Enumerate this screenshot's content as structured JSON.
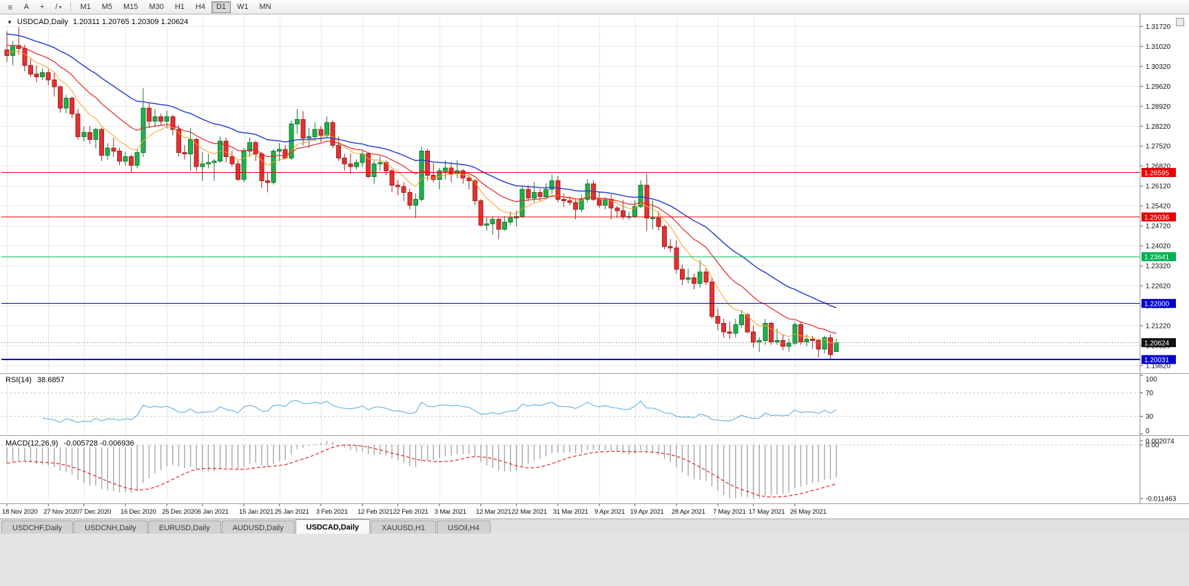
{
  "toolbar": {
    "icons": [
      {
        "name": "toolbar-grip-icon",
        "glyph": "≡"
      },
      {
        "name": "text-annotation-icon",
        "glyph": "A"
      },
      {
        "name": "crosshair-icon",
        "glyph": "+"
      },
      {
        "name": "draw-tools-icon",
        "glyph": "/"
      },
      {
        "name": "dropdown-caret-icon",
        "glyph": "▾"
      }
    ],
    "timeframes": [
      "M1",
      "M5",
      "M15",
      "M30",
      "H1",
      "H4",
      "D1",
      "W1",
      "MN"
    ],
    "active_timeframe": "D1"
  },
  "chart": {
    "symbol_period": "USDCAD,Daily",
    "ohlc_text": "1.20311 1.20765 1.20309 1.20624",
    "collapse_icon": "▼"
  },
  "tabs": {
    "items": [
      "USDCHF,Daily",
      "USDCNH,Daily",
      "EURUSD,Daily",
      "AUDUSD,Daily",
      "USDCAD,Daily",
      "XAUUSD,H1",
      "USOil,H4"
    ],
    "active_index": 4
  },
  "chart_data": {
    "type": "candlestick",
    "symbol": "USDCAD",
    "period": "Daily",
    "last_ohlc": {
      "open": "1.20311",
      "high": "1.20765",
      "low": "1.20309",
      "close": "1.20624"
    },
    "price_axis": {
      "range": [
        1.196,
        1.3202
      ],
      "ticks": [
        "1.31720",
        "1.31020",
        "1.30320",
        "1.29620",
        "1.28920",
        "1.28220",
        "1.27520",
        "1.26820",
        "1.26120",
        "1.25420",
        "1.24720",
        "1.24020",
        "1.23320",
        "1.22620",
        "1.21920",
        "1.21220",
        "1.20520",
        "1.19820"
      ]
    },
    "x_axis": {
      "labels": [
        {
          "i": 0,
          "t": "18 Nov 2020"
        },
        {
          "i": 7,
          "t": "27 Nov 2020"
        },
        {
          "i": 13,
          "t": "7 Dec 2020"
        },
        {
          "i": 20,
          "t": "16 Dec 2020"
        },
        {
          "i": 27,
          "t": "25 Dec 2020"
        },
        {
          "i": 33,
          "t": "6 Jan 2021"
        },
        {
          "i": 40,
          "t": "15 Jan 2021"
        },
        {
          "i": 46,
          "t": "25 Jan 2021"
        },
        {
          "i": 53,
          "t": "3 Feb 2021"
        },
        {
          "i": 60,
          "t": "12 Feb 2021"
        },
        {
          "i": 66,
          "t": "22 Feb 2021"
        },
        {
          "i": 73,
          "t": "3 Mar 2021"
        },
        {
          "i": 80,
          "t": "12 Mar 2021"
        },
        {
          "i": 86,
          "t": "22 Mar 2021"
        },
        {
          "i": 93,
          "t": "31 Mar 2021"
        },
        {
          "i": 100,
          "t": "9 Apr 2021"
        },
        {
          "i": 106,
          "t": "19 Apr 2021"
        },
        {
          "i": 113,
          "t": "28 Apr 2021"
        },
        {
          "i": 120,
          "t": "7 May 2021"
        },
        {
          "i": 126,
          "t": "17 May 2021"
        },
        {
          "i": 133,
          "t": "26 May 2021"
        }
      ]
    },
    "candles": [
      [
        1.309,
        1.3155,
        1.3048,
        1.307
      ],
      [
        1.307,
        1.3122,
        1.3036,
        1.3105
      ],
      [
        1.3105,
        1.317,
        1.3072,
        1.3095
      ],
      [
        1.3095,
        1.3108,
        1.3015,
        1.3035
      ],
      [
        1.3035,
        1.3062,
        1.2995,
        1.3005
      ],
      [
        1.3005,
        1.3036,
        1.2976,
        1.2995
      ],
      [
        1.2995,
        1.3025,
        1.2984,
        1.301
      ],
      [
        1.301,
        1.3022,
        1.2965,
        1.2985
      ],
      [
        1.2985,
        1.301,
        1.2926,
        1.296
      ],
      [
        1.296,
        1.2966,
        1.287,
        1.2885
      ],
      [
        1.2885,
        1.2932,
        1.2868,
        1.292
      ],
      [
        1.292,
        1.2926,
        1.285,
        1.2865
      ],
      [
        1.2865,
        1.2882,
        1.2775,
        1.2785
      ],
      [
        1.2785,
        1.2821,
        1.2768,
        1.28
      ],
      [
        1.28,
        1.2822,
        1.276,
        1.2775
      ],
      [
        1.2775,
        1.2816,
        1.2744,
        1.281
      ],
      [
        1.281,
        1.2816,
        1.27,
        1.272
      ],
      [
        1.272,
        1.2762,
        1.2704,
        1.2745
      ],
      [
        1.2745,
        1.2782,
        1.2714,
        1.2735
      ],
      [
        1.2735,
        1.2746,
        1.2685,
        1.27
      ],
      [
        1.27,
        1.2732,
        1.2684,
        1.2715
      ],
      [
        1.2715,
        1.2722,
        1.266,
        1.2685
      ],
      [
        1.2685,
        1.2742,
        1.2674,
        1.273
      ],
      [
        1.273,
        1.2955,
        1.2714,
        1.2885
      ],
      [
        1.2885,
        1.2902,
        1.2815,
        1.284
      ],
      [
        1.284,
        1.2882,
        1.2818,
        1.2855
      ],
      [
        1.2855,
        1.2866,
        1.2824,
        1.284
      ],
      [
        1.284,
        1.2876,
        1.2814,
        1.2855
      ],
      [
        1.2855,
        1.2862,
        1.279,
        1.281
      ],
      [
        1.281,
        1.2826,
        1.2715,
        1.273
      ],
      [
        1.273,
        1.2756,
        1.2705,
        1.2725
      ],
      [
        1.2725,
        1.2816,
        1.2665,
        1.2775
      ],
      [
        1.2775,
        1.2782,
        1.2665,
        1.268
      ],
      [
        1.268,
        1.2732,
        1.263,
        1.269
      ],
      [
        1.269,
        1.2726,
        1.2674,
        1.2695
      ],
      [
        1.2695,
        1.2706,
        1.263,
        1.27
      ],
      [
        1.27,
        1.2786,
        1.2694,
        1.277
      ],
      [
        1.277,
        1.2782,
        1.2695,
        1.2715
      ],
      [
        1.2715,
        1.2736,
        1.268,
        1.269
      ],
      [
        1.269,
        1.2702,
        1.263,
        1.2635
      ],
      [
        1.2635,
        1.2746,
        1.2624,
        1.2735
      ],
      [
        1.2735,
        1.2782,
        1.2714,
        1.2765
      ],
      [
        1.2765,
        1.2772,
        1.27,
        1.2725
      ],
      [
        1.2725,
        1.2732,
        1.2605,
        1.263
      ],
      [
        1.263,
        1.2662,
        1.259,
        1.2625
      ],
      [
        1.2625,
        1.2742,
        1.2618,
        1.2735
      ],
      [
        1.2735,
        1.2762,
        1.27,
        1.274
      ],
      [
        1.274,
        1.2756,
        1.2705,
        1.271
      ],
      [
        1.271,
        1.2842,
        1.2704,
        1.283
      ],
      [
        1.283,
        1.2882,
        1.2795,
        1.2845
      ],
      [
        1.2845,
        1.2875,
        1.2755,
        1.278
      ],
      [
        1.278,
        1.2816,
        1.2745,
        1.2785
      ],
      [
        1.2785,
        1.2836,
        1.277,
        1.281
      ],
      [
        1.281,
        1.2822,
        1.2765,
        1.279
      ],
      [
        1.279,
        1.2856,
        1.278,
        1.2835
      ],
      [
        1.2835,
        1.2842,
        1.2745,
        1.2755
      ],
      [
        1.2755,
        1.2786,
        1.27,
        1.271
      ],
      [
        1.271,
        1.2726,
        1.2665,
        1.269
      ],
      [
        1.269,
        1.2726,
        1.2655,
        1.268
      ],
      [
        1.268,
        1.2706,
        1.267,
        1.2695
      ],
      [
        1.2695,
        1.2736,
        1.268,
        1.2725
      ],
      [
        1.2725,
        1.2732,
        1.264,
        1.2645
      ],
      [
        1.2645,
        1.2702,
        1.262,
        1.269
      ],
      [
        1.269,
        1.2716,
        1.2665,
        1.2695
      ],
      [
        1.2695,
        1.2702,
        1.265,
        1.2665
      ],
      [
        1.2665,
        1.2672,
        1.259,
        1.2615
      ],
      [
        1.2615,
        1.2632,
        1.258,
        1.261
      ],
      [
        1.261,
        1.2626,
        1.256,
        1.259
      ],
      [
        1.259,
        1.2602,
        1.253,
        1.2545
      ],
      [
        1.2545,
        1.2586,
        1.25,
        1.2565
      ],
      [
        1.2565,
        1.275,
        1.2558,
        1.2735
      ],
      [
        1.2735,
        1.2742,
        1.263,
        1.265
      ],
      [
        1.265,
        1.2692,
        1.2625,
        1.2635
      ],
      [
        1.2635,
        1.2676,
        1.26,
        1.2665
      ],
      [
        1.2665,
        1.2702,
        1.2635,
        1.2675
      ],
      [
        1.2675,
        1.2696,
        1.2625,
        1.2655
      ],
      [
        1.2655,
        1.2702,
        1.264,
        1.2665
      ],
      [
        1.2665,
        1.2672,
        1.262,
        1.264
      ],
      [
        1.264,
        1.2652,
        1.26,
        1.263
      ],
      [
        1.263,
        1.2636,
        1.2545,
        1.256
      ],
      [
        1.256,
        1.2566,
        1.247,
        1.2475
      ],
      [
        1.2475,
        1.2502,
        1.2455,
        1.248
      ],
      [
        1.248,
        1.2506,
        1.244,
        1.2495
      ],
      [
        1.2495,
        1.2502,
        1.2425,
        1.246
      ],
      [
        1.246,
        1.2506,
        1.2455,
        1.2485
      ],
      [
        1.2485,
        1.2522,
        1.2475,
        1.25
      ],
      [
        1.25,
        1.2526,
        1.247,
        1.2505
      ],
      [
        1.2505,
        1.2612,
        1.25,
        1.26
      ],
      [
        1.26,
        1.2616,
        1.256,
        1.257
      ],
      [
        1.257,
        1.2626,
        1.2555,
        1.259
      ],
      [
        1.259,
        1.2602,
        1.256,
        1.2575
      ],
      [
        1.2575,
        1.2622,
        1.2565,
        1.26
      ],
      [
        1.26,
        1.2652,
        1.2585,
        1.263
      ],
      [
        1.263,
        1.2646,
        1.2555,
        1.2565
      ],
      [
        1.2565,
        1.2586,
        1.254,
        1.256
      ],
      [
        1.256,
        1.2576,
        1.2545,
        1.2555
      ],
      [
        1.2555,
        1.2566,
        1.2495,
        1.253
      ],
      [
        1.253,
        1.2582,
        1.252,
        1.2565
      ],
      [
        1.2565,
        1.2636,
        1.2555,
        1.262
      ],
      [
        1.262,
        1.2632,
        1.256,
        1.2565
      ],
      [
        1.2565,
        1.2592,
        1.2535,
        1.2545
      ],
      [
        1.2545,
        1.2572,
        1.253,
        1.2565
      ],
      [
        1.2565,
        1.2582,
        1.2495,
        1.2535
      ],
      [
        1.2535,
        1.2542,
        1.25,
        1.2525
      ],
      [
        1.2525,
        1.2562,
        1.2495,
        1.2505
      ],
      [
        1.2505,
        1.2522,
        1.2493,
        1.2505
      ],
      [
        1.2505,
        1.2562,
        1.25,
        1.254
      ],
      [
        1.254,
        1.2632,
        1.2535,
        1.2615
      ],
      [
        1.2615,
        1.2655,
        1.2455,
        1.25
      ],
      [
        1.25,
        1.2562,
        1.246,
        1.25
      ],
      [
        1.25,
        1.2522,
        1.2455,
        1.247
      ],
      [
        1.247,
        1.2476,
        1.239,
        1.24
      ],
      [
        1.24,
        1.2426,
        1.238,
        1.2395
      ],
      [
        1.2395,
        1.2422,
        1.2305,
        1.232
      ],
      [
        1.232,
        1.2336,
        1.2265,
        1.2285
      ],
      [
        1.2285,
        1.2322,
        1.227,
        1.229
      ],
      [
        1.229,
        1.2306,
        1.225,
        1.227
      ],
      [
        1.227,
        1.2352,
        1.2255,
        1.231
      ],
      [
        1.231,
        1.2322,
        1.2265,
        1.2275
      ],
      [
        1.2275,
        1.2292,
        1.2145,
        1.2155
      ],
      [
        1.2155,
        1.2182,
        1.2105,
        1.213
      ],
      [
        1.213,
        1.2146,
        1.208,
        1.21
      ],
      [
        1.21,
        1.2136,
        1.2075,
        1.2095
      ],
      [
        1.2095,
        1.2146,
        1.208,
        1.2125
      ],
      [
        1.2125,
        1.2176,
        1.2115,
        1.216
      ],
      [
        1.216,
        1.2166,
        1.2095,
        1.21
      ],
      [
        1.21,
        1.2122,
        1.2045,
        1.2065
      ],
      [
        1.2065,
        1.2082,
        1.203,
        1.207
      ],
      [
        1.207,
        1.2146,
        1.2055,
        1.213
      ],
      [
        1.213,
        1.2136,
        1.2055,
        1.2065
      ],
      [
        1.2065,
        1.2112,
        1.2055,
        1.207
      ],
      [
        1.207,
        1.2092,
        1.2035,
        1.205
      ],
      [
        1.205,
        1.2076,
        1.203,
        1.206
      ],
      [
        1.206,
        1.2136,
        1.2055,
        1.2125
      ],
      [
        1.2125,
        1.2136,
        1.2055,
        1.2065
      ],
      [
        1.2065,
        1.2092,
        1.205,
        1.2075
      ],
      [
        1.2075,
        1.2086,
        1.204,
        1.207
      ],
      [
        1.207,
        1.2076,
        1.201,
        1.204
      ],
      [
        1.204,
        1.2086,
        1.2025,
        1.208
      ],
      [
        1.208,
        1.2092,
        1.2004,
        1.202
      ],
      [
        1.20311,
        1.20765,
        1.20309,
        1.20624
      ]
    ],
    "moving_averages": [
      {
        "name": "ma-fast",
        "period": 8,
        "color": "#ff9d1e",
        "width": 1,
        "start_offset": 0.001
      },
      {
        "name": "ma-mid",
        "period": 17,
        "color": "#e02626",
        "width": 1.2,
        "start_offset": 0.004
      },
      {
        "name": "ma-slow",
        "period": 34,
        "color": "#2b43cc",
        "width": 1.5,
        "start_offset": 0.008
      }
    ],
    "hlines": [
      {
        "value": 1.26595,
        "label": "1.26595",
        "color": "#e60000",
        "width": 1
      },
      {
        "value": 1.25036,
        "label": "1.25036",
        "color": "#e60000",
        "width": 1
      },
      {
        "value": 1.23641,
        "label": "1.23641",
        "color": "#00b050",
        "width": 1
      },
      {
        "value": 1.22,
        "label": "1.22000",
        "color": "#0000cc",
        "width": 1
      },
      {
        "value": 1.20031,
        "label": "1.20031",
        "color": "#0000cc",
        "width": 2
      }
    ],
    "current_price": {
      "value": 1.20624,
      "label": "1.20624",
      "badge_color": "#111111"
    },
    "indicators": {
      "rsi": {
        "label": "RSI(14)",
        "value": "38.6857",
        "period": 14,
        "color": "#58a6d8",
        "levels": [
          70,
          30
        ],
        "axis_ticks": [
          "100",
          "70",
          "30",
          "0"
        ],
        "range": [
          0,
          100
        ]
      },
      "macd": {
        "label": "MACD(12,26,9)",
        "value": "-0.005728 -0.006936",
        "fast": 12,
        "slow": 26,
        "signal_period": 9,
        "histogram_color": "#ababab",
        "signal_color": "#e02626",
        "axis_ticks": [
          "0.002074",
          "0.00",
          "-0.011463"
        ]
      }
    }
  }
}
